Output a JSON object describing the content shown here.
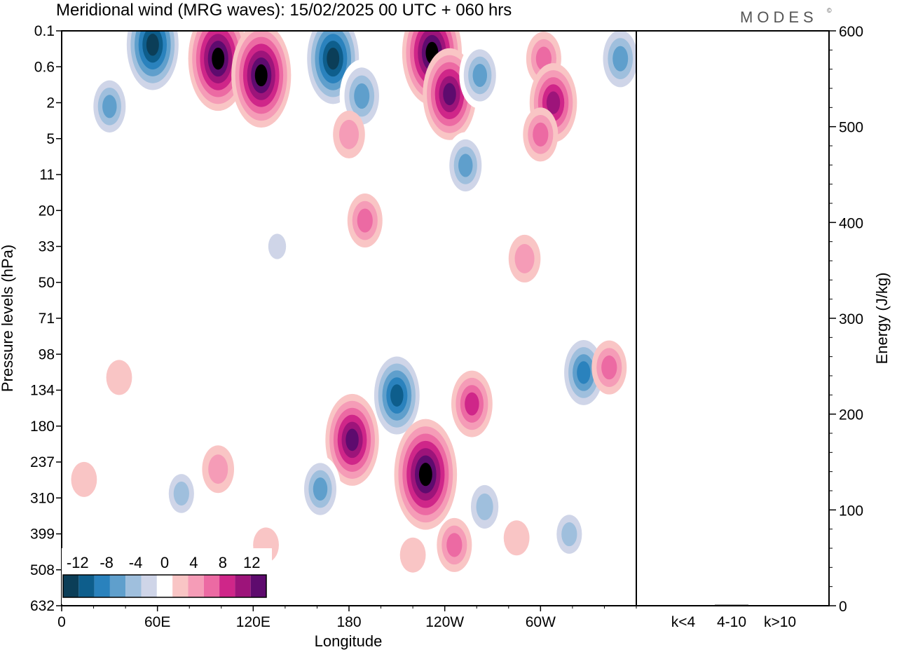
{
  "header": {
    "title": "Meridional wind (MRG waves):  15/02/2025  00 UTC  + 060 hrs",
    "logo_text": "MODES",
    "logo_mark": "©"
  },
  "chart_data": [
    {
      "type": "heatmap",
      "title": "Meridional wind (MRG waves):  15/02/2025  00 UTC  + 060 hrs",
      "xlabel": "Longitude",
      "ylabel": "Pressure levels (hPa)",
      "x_ticks": [
        "0",
        "60E",
        "120E",
        "180",
        "120W",
        "60W"
      ],
      "x_range_deg": [
        0,
        360
      ],
      "y_ticks": [
        "0.1",
        "0.6",
        "2",
        "5",
        "11",
        "20",
        "33",
        "50",
        "71",
        "98",
        "134",
        "180",
        "237",
        "310",
        "399",
        "508",
        "632"
      ],
      "color_levels": [
        -14,
        -12,
        -10,
        -8,
        -6,
        -4,
        -2,
        2,
        4,
        6,
        8,
        10,
        12,
        14
      ],
      "colorbar_labels": [
        "-12",
        "-8",
        "-4",
        "0",
        "4",
        "8",
        "12"
      ],
      "colorbar_labels_values": [
        -12,
        -8,
        -4,
        0,
        4,
        8,
        12
      ],
      "colors": [
        "#0b3e58",
        "#0e5e8c",
        "#2a82bd",
        "#5f9fcc",
        "#9fbfdd",
        "#cfd5e8",
        "#ffffff",
        "#f9c5c5",
        "#f59cb7",
        "#ec6aa3",
        "#cf2689",
        "#9d147a",
        "#5e0b6e"
      ],
      "features": [
        {
          "lon": 30,
          "lev": 2.2,
          "value": -7
        },
        {
          "lon": 57,
          "lev": 0.2,
          "value": -13
        },
        {
          "lon": 98,
          "lev": 0.4,
          "value": 13
        },
        {
          "lon": 125,
          "lev": 0.8,
          "value": 13
        },
        {
          "lon": 170,
          "lev": 0.4,
          "value": -13
        },
        {
          "lon": 188,
          "lev": 1.6,
          "value": -8
        },
        {
          "lon": 232,
          "lev": 0.3,
          "value": 13
        },
        {
          "lon": 243,
          "lev": 1.5,
          "value": 11
        },
        {
          "lon": 262,
          "lev": 0.8,
          "value": -7
        },
        {
          "lon": 302,
          "lev": 0.4,
          "value": 5
        },
        {
          "lon": 308,
          "lev": 2.0,
          "value": 9
        },
        {
          "lon": 350,
          "lev": 0.4,
          "value": -8
        },
        {
          "lon": 180,
          "lev": 4.5,
          "value": 4
        },
        {
          "lon": 300,
          "lev": 4.5,
          "value": 5
        },
        {
          "lon": 253,
          "lev": 9,
          "value": -7
        },
        {
          "lon": 190,
          "lev": 23,
          "value": 5
        },
        {
          "lon": 290,
          "lev": 38,
          "value": 4
        },
        {
          "lon": 135,
          "lev": 33,
          "value": -3
        },
        {
          "lon": 210,
          "lev": 140,
          "value": -11
        },
        {
          "lon": 228,
          "lev": 260,
          "value": 14
        },
        {
          "lon": 182,
          "lev": 200,
          "value": 11
        },
        {
          "lon": 162,
          "lev": 290,
          "value": -7
        },
        {
          "lon": 257,
          "lev": 150,
          "value": 7
        },
        {
          "lon": 327,
          "lev": 115,
          "value": -9
        },
        {
          "lon": 343,
          "lev": 110,
          "value": 5
        },
        {
          "lon": 98,
          "lev": 250,
          "value": 4
        },
        {
          "lon": 75,
          "lev": 300,
          "value": -5
        },
        {
          "lon": 14,
          "lev": 270,
          "value": 2
        },
        {
          "lon": 36,
          "lev": 120,
          "value": 2
        },
        {
          "lon": 265,
          "lev": 330,
          "value": -6
        },
        {
          "lon": 246,
          "lev": 430,
          "value": 5
        },
        {
          "lon": 318,
          "lev": 400,
          "value": -5
        },
        {
          "lon": 285,
          "lev": 410,
          "value": 2
        },
        {
          "lon": 60,
          "lev": 420,
          "value": -2
        },
        {
          "lon": 128,
          "lev": 430,
          "value": 2
        },
        {
          "lon": 220,
          "lev": 460,
          "value": 2
        }
      ]
    },
    {
      "type": "bar",
      "title": "",
      "categories": [
        "k<4",
        "4-10",
        "k>10"
      ],
      "values": [
        0.5,
        1.0,
        0.3
      ],
      "xlabel": "",
      "ylabel": "Energy (J/kg)",
      "ylim": [
        0,
        600
      ],
      "y_ticks": [
        "0",
        "100",
        "200",
        "300",
        "400",
        "500",
        "600"
      ]
    }
  ]
}
